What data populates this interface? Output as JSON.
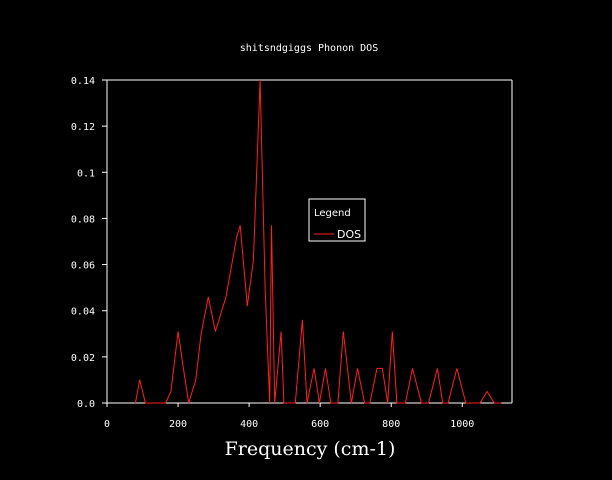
{
  "chart_data": {
    "type": "line",
    "title": "shitsndgiggs Phonon DOS",
    "xlabel": "Frequency (cm-1)",
    "ylabel": "",
    "xlim": [
      0,
      1140
    ],
    "ylim": [
      0,
      0.14
    ],
    "xticks": [
      0,
      200,
      400,
      600,
      800,
      1000
    ],
    "xtick_labels": [
      "0",
      "200",
      "400",
      "600",
      "800",
      "1000"
    ],
    "yticks": [
      0.0,
      0.02,
      0.04,
      0.06,
      0.08,
      0.1,
      0.12,
      0.14
    ],
    "ytick_labels": [
      "0.0",
      "0.02",
      "0.04",
      "0.06",
      "0.08",
      "0.1",
      "0.12",
      "0.14"
    ],
    "grid": false,
    "legend": {
      "title": "Legend",
      "placement": "center-right"
    },
    "colors": {
      "background": "#000000",
      "axes": "#ffffff",
      "series": "#ff2020"
    },
    "series": [
      {
        "name": "DOS",
        "x": [
          80,
          92,
          108,
          165,
          180,
          200,
          215,
          230,
          250,
          265,
          285,
          305,
          335,
          365,
          375,
          395,
          412,
          431,
          445,
          458,
          463,
          472,
          490,
          498,
          510,
          530,
          550,
          563,
          583,
          598,
          615,
          630,
          650,
          665,
          688,
          705,
          725,
          740,
          760,
          775,
          790,
          803,
          816,
          830,
          840,
          860,
          885,
          905,
          930,
          945,
          960,
          985,
          1010,
          1020,
          1050,
          1070,
          1090,
          1110
        ],
        "y": [
          0,
          0.01,
          0,
          0,
          0.005,
          0.031,
          0.015,
          0,
          0.01,
          0.03,
          0.046,
          0.031,
          0.046,
          0.072,
          0.077,
          0.042,
          0.062,
          0.14,
          0.05,
          0,
          0.077,
          0,
          0.031,
          0,
          0,
          0,
          0.036,
          0,
          0.015,
          0,
          0.015,
          0,
          0,
          0.031,
          0,
          0.015,
          0,
          0,
          0.015,
          0.015,
          0,
          0.031,
          0,
          0,
          0,
          0.015,
          0,
          0,
          0.015,
          0,
          0,
          0.015,
          0,
          0,
          0,
          0.005,
          0,
          0
        ]
      }
    ]
  }
}
